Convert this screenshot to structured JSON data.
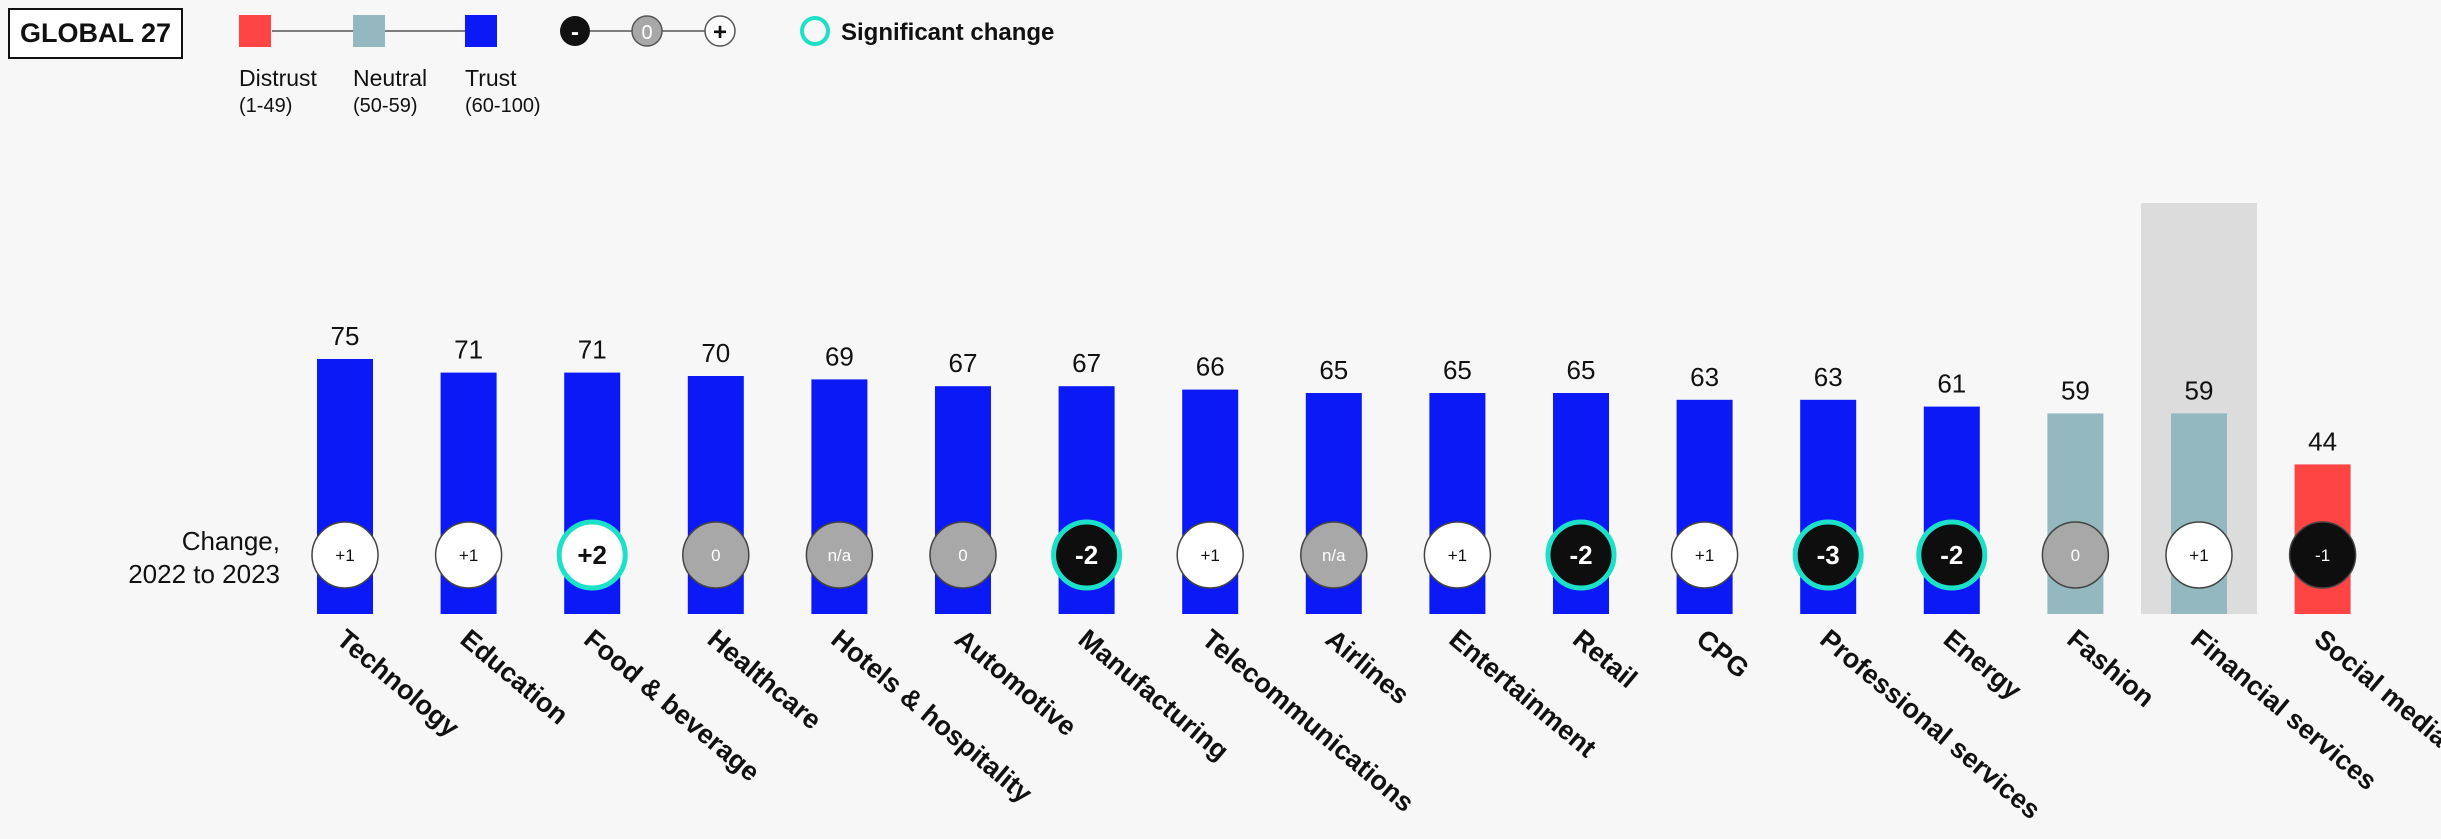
{
  "badge": "GLOBAL 27",
  "legend": {
    "distrust": {
      "label": "Distrust",
      "range": "(1-49)",
      "color": "#ff4444"
    },
    "neutral": {
      "label": "Neutral",
      "range": "(50-59)",
      "color": "#93b8bf"
    },
    "trust": {
      "label": "Trust",
      "range": "(60-100)",
      "color": "#0a19f5"
    },
    "change_minus": "-",
    "change_zero": "0",
    "change_plus": "+",
    "significant": "Significant change",
    "significant_color": "#1de0c8"
  },
  "change_label_line1": "Change,",
  "change_label_line2": "2022 to 2023",
  "chart_data": {
    "type": "bar",
    "categories": [
      "Technology",
      "Education",
      "Food & beverage",
      "Healthcare",
      "Hotels & hospitality",
      "Automotive",
      "Manufacturing",
      "Telecommunications",
      "Airlines",
      "Entertainment",
      "Retail",
      "CPG",
      "Professional services",
      "Energy",
      "Fashion",
      "Financial services",
      "Social media"
    ],
    "values": [
      75,
      71,
      71,
      70,
      69,
      67,
      67,
      66,
      65,
      65,
      65,
      63,
      63,
      61,
      59,
      59,
      44
    ],
    "changes": [
      "+1",
      "+1",
      "+2",
      "0",
      "n/a",
      "0",
      "-2",
      "+1",
      "n/a",
      "+1",
      "-2",
      "+1",
      "-3",
      "-2",
      "0",
      "+1",
      "-1"
    ],
    "significant": [
      false,
      false,
      true,
      false,
      false,
      false,
      true,
      false,
      false,
      false,
      true,
      false,
      true,
      true,
      false,
      false,
      false
    ],
    "highlighted": "Financial services"
  }
}
